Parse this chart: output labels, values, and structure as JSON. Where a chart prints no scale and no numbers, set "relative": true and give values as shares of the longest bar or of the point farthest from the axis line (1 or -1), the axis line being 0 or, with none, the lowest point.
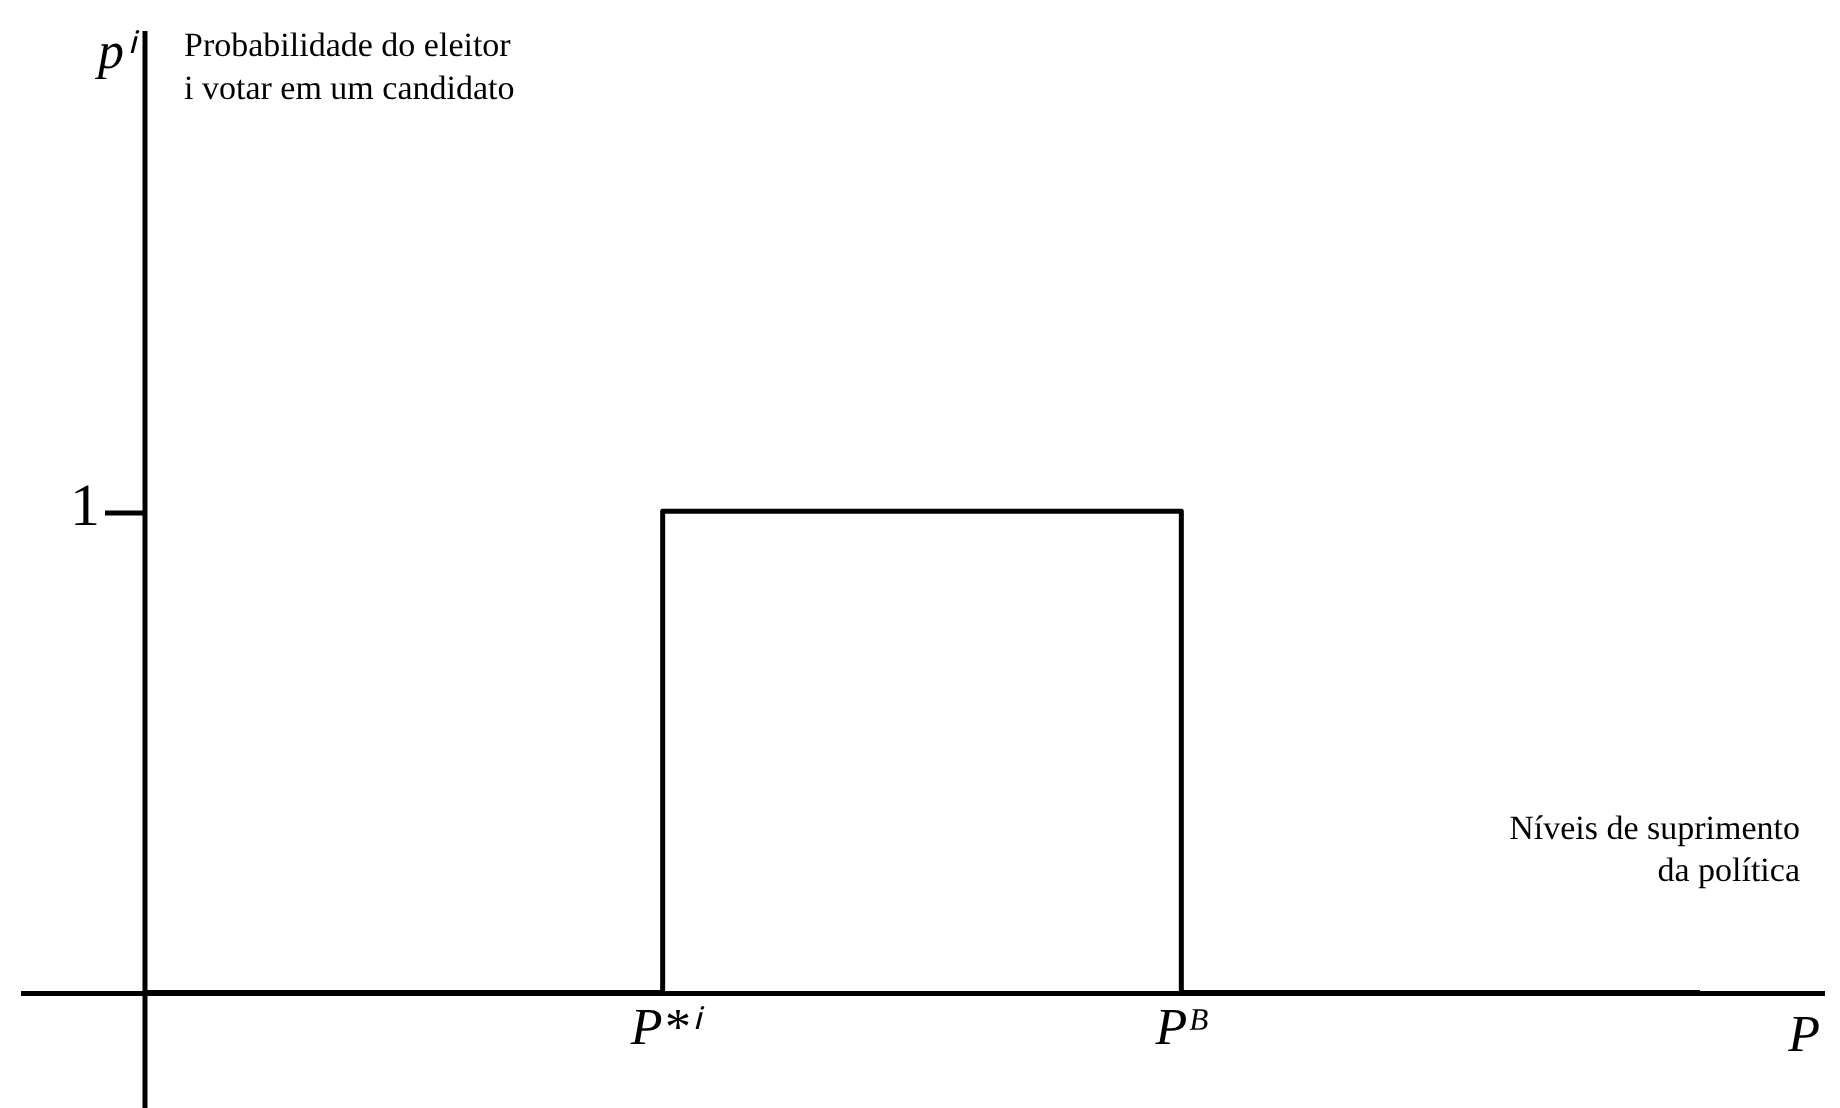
{
  "chart_data": {
    "type": "step",
    "xlabel": "P",
    "categories": [
      null,
      "P*ⁱ",
      "Pᴮ",
      null
    ],
    "series": [
      {
        "color": "#000000",
        "values": [
          0,
          1,
          0,
          0
        ]
      }
    ],
    "relative": true,
    "annotations": [
      "pⁱ",
      "Probabilidade do eleitor\ni votar em um candidato",
      "Níveis de suprimento\nda política",
      "1"
    ]
  }
}
